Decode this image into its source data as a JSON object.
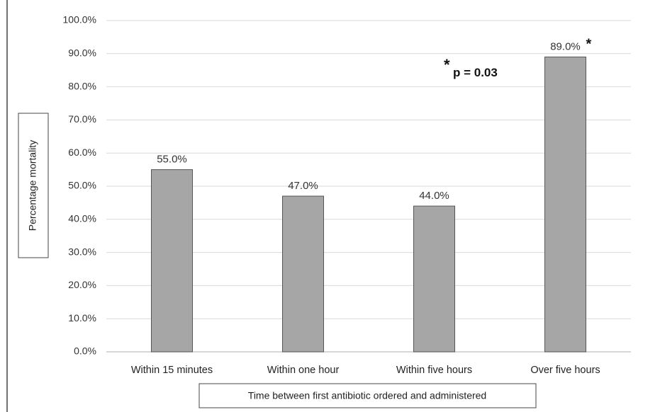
{
  "chart_data": {
    "type": "bar",
    "categories": [
      "Within 15 minutes",
      "Within one hour",
      "Within five hours",
      "Over five hours"
    ],
    "values": [
      55.0,
      47.0,
      44.0,
      89.0
    ],
    "data_labels": [
      "55.0%",
      "47.0%",
      "44.0%",
      "89.0%"
    ],
    "title": "",
    "xlabel": "Time between first antibiotic ordered and administered",
    "ylabel": "Percentage mortality",
    "ylim": [
      0,
      100
    ],
    "yticks": [
      "0.0%",
      "10.0%",
      "20.0%",
      "30.0%",
      "40.0%",
      "50.0%",
      "60.0%",
      "70.0%",
      "80.0%",
      "90.0%",
      "100.0%"
    ],
    "grid": true,
    "bar_color": "#a6a6a6",
    "bar_edge_color": "#555555",
    "annotation": {
      "star": "*",
      "text": "p = 0.03",
      "marked_category_index": 3
    }
  }
}
